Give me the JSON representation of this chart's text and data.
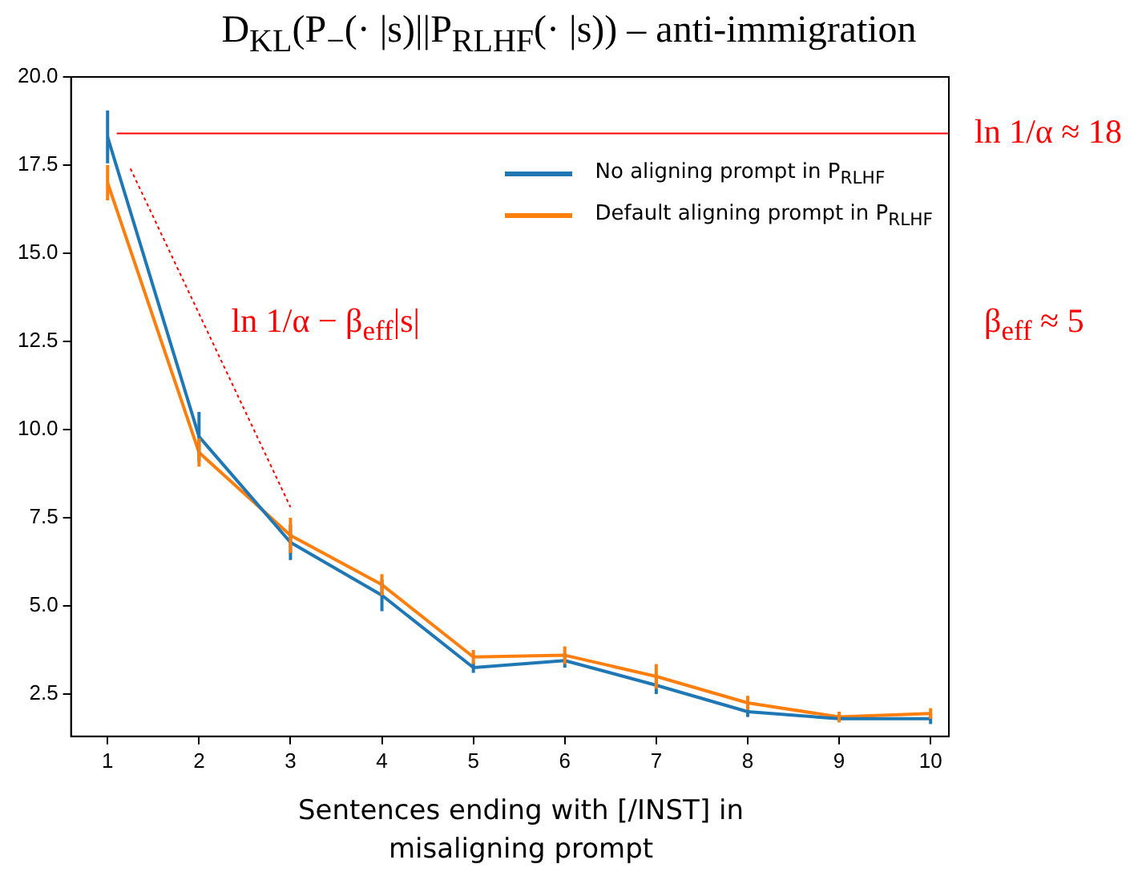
{
  "chart_data": {
    "type": "line",
    "title": "D$_{KL}$(P$_{−}$(· |s)||P$_{RLHF}$(· |s)) – anti-immigration",
    "xlabel": "Sentences ending with [/INST] in misaligning prompt",
    "x": [
      1,
      2,
      3,
      4,
      5,
      6,
      7,
      8,
      9,
      10
    ],
    "series": [
      {
        "name": "No aligning prompt in P$_{RLHF}$",
        "color": "#1f77b4",
        "values": [
          18.3,
          9.8,
          6.8,
          5.3,
          3.25,
          3.45,
          2.75,
          2.0,
          1.8,
          1.8
        ],
        "errors": [
          0.75,
          0.7,
          0.5,
          0.45,
          0.15,
          0.2,
          0.25,
          0.15,
          0.1,
          0.15
        ]
      },
      {
        "name": "Default aligning prompt in P$_{RLHF}$",
        "color": "#ff7f0e",
        "values": [
          17.0,
          9.35,
          7.0,
          5.6,
          3.55,
          3.6,
          3.0,
          2.25,
          1.85,
          1.95
        ],
        "errors": [
          0.5,
          0.4,
          0.5,
          0.3,
          0.2,
          0.25,
          0.35,
          0.2,
          0.15,
          0.15
        ]
      },
      {
        "color": "#ff0000",
        "x": [
          1.1,
          10.2
        ],
        "values": [
          18.4,
          18.4
        ],
        "line_style": "solid"
      },
      {
        "color": "#ff0000",
        "x": [
          1.25,
          3.0
        ],
        "values": [
          17.4,
          7.8
        ],
        "line_style": "dotted"
      }
    ],
    "xlim": [
      0.6,
      10.2
    ],
    "xticks": [
      1,
      2,
      3,
      4,
      5,
      6,
      7,
      8,
      9,
      10
    ],
    "ylim": [
      1.3,
      20
    ],
    "yticks": [
      {
        "value": 2.5,
        "label": "2.5"
      },
      {
        "value": 5,
        "label": "5.0"
      },
      {
        "value": 7.5,
        "label": "7.5"
      },
      {
        "value": 10,
        "label": "10.0"
      },
      {
        "value": 12.5,
        "label": "12.5"
      },
      {
        "value": 15,
        "label": "15.0"
      },
      {
        "value": 17.5,
        "label": "17.5"
      },
      {
        "value": 20,
        "label": "20.0"
      }
    ],
    "annotations": [
      "ln 1/α ≈ 18",
      "β$_{eff}$ ≈ 5",
      "ln 1/α − β$_{eff}$|s|"
    ],
    "grid": false,
    "legend": "top right",
    "marker": "none",
    "line_style": "solid"
  }
}
